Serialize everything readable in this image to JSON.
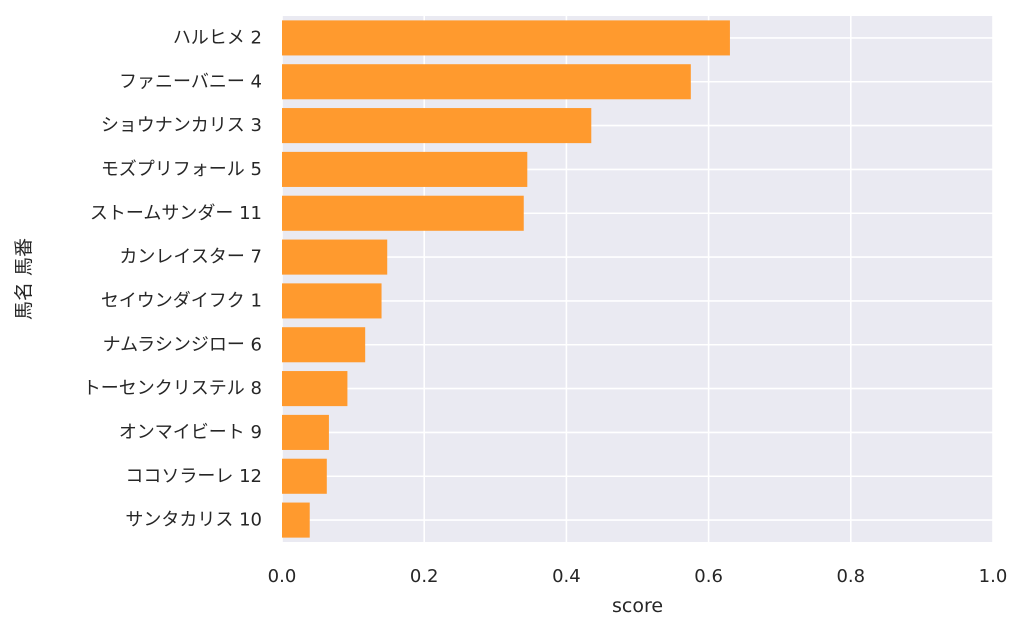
{
  "chart_data": {
    "type": "bar",
    "orientation": "horizontal",
    "categories": [
      "ハルヒメ 2",
      "ファニーバニー 4",
      "ショウナンカリス 3",
      "モズプリフォール 5",
      "ストームサンダー 11",
      "カンレイスター 7",
      "セイウンダイフク 1",
      "ナムラシンジロー 6",
      "トーセンクリステル 8",
      "オンマイビート 9",
      "ココソラーレ 12",
      "サンタカリス 10"
    ],
    "values": [
      0.63,
      0.575,
      0.435,
      0.345,
      0.34,
      0.148,
      0.14,
      0.117,
      0.092,
      0.066,
      0.063,
      0.039
    ],
    "xlabel": "score",
    "ylabel": "馬名 馬番",
    "xlim": [
      0,
      1.0
    ],
    "x_ticks": [
      "0.0",
      "0.2",
      "0.4",
      "0.6",
      "0.8",
      "1.0"
    ],
    "grid": true,
    "colors": {
      "bar": "#ff9a2e",
      "plot_background": "#eaeaf2",
      "grid": "#ffffff",
      "text": "#262626"
    }
  }
}
